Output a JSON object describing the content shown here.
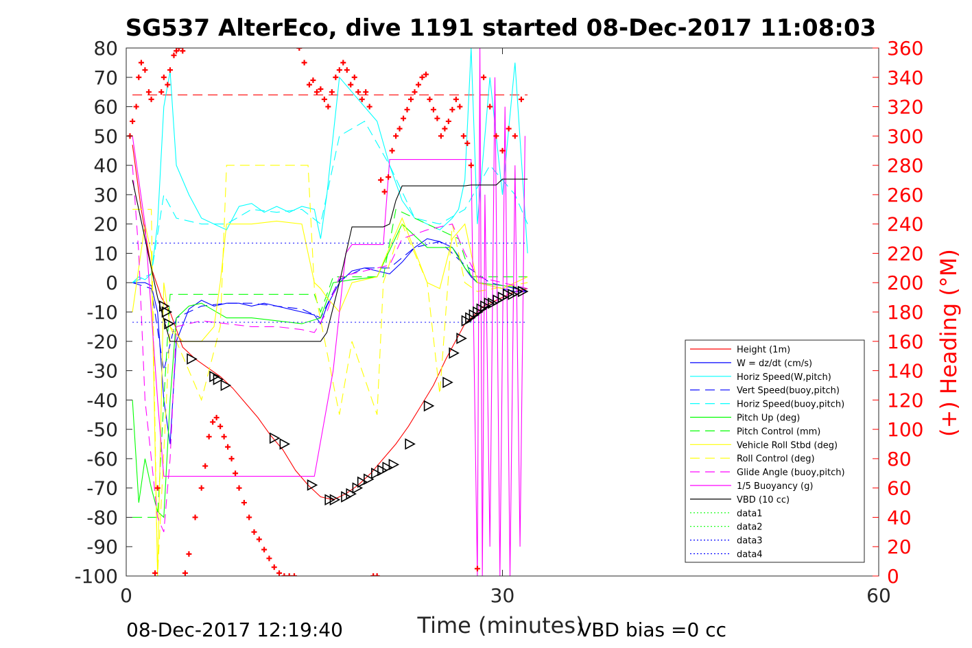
{
  "chart_data": {
    "type": "line",
    "title": "SG537 AlterEco, dive 1191 started 08-Dec-2017 11:08:03",
    "xlabel": "Time (minutes)",
    "ylabel": "",
    "y2label": "(+) Heading (°M)",
    "xlim": [
      0,
      60
    ],
    "ylim": [
      -100,
      80
    ],
    "y2lim": [
      0,
      360
    ],
    "x_ticks": [
      "0",
      "30",
      "60"
    ],
    "y_ticks": [
      "80",
      "70",
      "60",
      "50",
      "40",
      "30",
      "20",
      "10",
      "0",
      "-10",
      "-20",
      "-30",
      "-40",
      "-50",
      "-60",
      "-70",
      "-80",
      "-90",
      "-100"
    ],
    "y2_ticks": [
      "360",
      "340",
      "320",
      "300",
      "280",
      "260",
      "240",
      "220",
      "200",
      "180",
      "160",
      "140",
      "120",
      "100",
      "80",
      "60",
      "40",
      "20",
      "0"
    ],
    "legend_position": "bottom-right",
    "footer_left": "08-Dec-2017 12:19:40",
    "footer_right": "VBD bias =0 cc",
    "colors": {
      "height": "#ff0000",
      "w": "#0000ff",
      "horiz": "#00ffff",
      "vert_buoy": "#0000ff",
      "horiz_buoy": "#00ffff",
      "pitch": "#00ff00",
      "pitch_ctl": "#00ff00",
      "roll": "#ffff00",
      "roll_ctl": "#ffff00",
      "glide": "#ff00ff",
      "buoyancy": "#ff00ff",
      "vbd": "#000000",
      "heading": "#ff0000",
      "axis_right": "#ff0000"
    },
    "series": [
      {
        "name": "Height (1m)",
        "key": "height",
        "style": "solid",
        "x": [
          0.5,
          1.2,
          2.0,
          2.8,
          3.5,
          4.5,
          5.5,
          6.5,
          7.5,
          8.5,
          9.5,
          10.5,
          11.5,
          12.5,
          13.5,
          14.5,
          15.5,
          16.5,
          17.5,
          18.5,
          19.5,
          20.5,
          21.5,
          22.5,
          23.5,
          24.5,
          25.5,
          26.5,
          27.0,
          27.5,
          28.0,
          28.5,
          29.0,
          29.5,
          30.0,
          30.5,
          31.0,
          31.5,
          32.0
        ],
        "y": [
          47,
          25,
          5,
          -5,
          -10,
          -22,
          -26,
          -29,
          -32,
          -36,
          -41,
          -46,
          -52,
          -57,
          -64,
          -69,
          -73,
          -74,
          -72,
          -69,
          -65,
          -60,
          -55,
          -49,
          -42,
          -35,
          -26,
          -18,
          -14,
          -12,
          -10,
          -8,
          -7,
          -6,
          -5,
          -4,
          -3,
          -2.5,
          -2
        ]
      },
      {
        "name": "W = dz/dt (cm/s)",
        "key": "w",
        "style": "solid",
        "x": [
          0.5,
          1.0,
          1.5,
          2.0,
          2.5,
          3.0,
          3.5,
          4.0,
          5.0,
          6.0,
          7.0,
          8.0,
          9.0,
          10.0,
          11.0,
          12.0,
          13.0,
          14.0,
          15.0,
          15.5,
          16.0,
          17.0,
          18.0,
          19.0,
          20.0,
          21.0,
          22.0,
          23.0,
          24.0,
          25.0,
          26.0,
          26.5,
          27.0,
          27.5,
          28.0,
          29.0,
          30.0,
          31.0,
          32.0
        ],
        "y": [
          0,
          0,
          0,
          -1,
          -10,
          -40,
          -55,
          -20,
          -9,
          -6,
          -8,
          -7,
          -7,
          -8,
          -7,
          -8,
          -9,
          -10,
          -11,
          -14,
          -8,
          0,
          4,
          5,
          4,
          3,
          7,
          12,
          15,
          14,
          12,
          9,
          5,
          2,
          0,
          -1,
          -2,
          -3,
          -3
        ]
      },
      {
        "name": "Horiz Speed(W,pitch)",
        "key": "horiz",
        "style": "solid",
        "x": [
          0.5,
          1.0,
          1.5,
          2.0,
          2.5,
          3.0,
          3.5,
          4.0,
          5.0,
          6.0,
          7.0,
          8.0,
          9.0,
          10.0,
          11.0,
          12.0,
          13.0,
          14.0,
          15.0,
          15.5,
          16.0,
          17.0,
          18.0,
          19.0,
          20.0,
          21.0,
          22.0,
          23.0,
          24.0,
          25.0,
          26.0,
          26.5,
          27.0,
          27.5,
          28.0,
          29.0,
          30.0,
          31.0,
          32.0
        ],
        "y": [
          0,
          2,
          1,
          3,
          20,
          60,
          72,
          40,
          30,
          22,
          20,
          18,
          26,
          27,
          24,
          26,
          24,
          26,
          25,
          15,
          30,
          70,
          65,
          60,
          55,
          40,
          28,
          22,
          20,
          18,
          22,
          25,
          35,
          80,
          20,
          70,
          30,
          75,
          10
        ]
      },
      {
        "name": "Vert Speed(buoy,pitch)",
        "key": "vert_buoy",
        "style": "dashed",
        "x": [
          0.5,
          2.0,
          3.0,
          4.0,
          6.0,
          8.0,
          10.0,
          12.0,
          14.0,
          15.5,
          17.0,
          19.0,
          21.0,
          23.0,
          25.0,
          27.0,
          29.0,
          31.0,
          32.0
        ],
        "y": [
          0,
          -2,
          -30,
          -12,
          -8,
          -7,
          -7,
          -8,
          -9,
          -12,
          1,
          5,
          5,
          12,
          14,
          6,
          0,
          -2,
          -3
        ]
      },
      {
        "name": "Horiz Speed(buoy,pitch)",
        "key": "horiz_buoy",
        "style": "dashed",
        "x": [
          0.5,
          2.0,
          3.0,
          4.0,
          6.0,
          8.0,
          10.0,
          12.0,
          14.0,
          15.5,
          17.0,
          19.0,
          21.0,
          23.0,
          25.0,
          27.0,
          29.0,
          31.0,
          32.0
        ],
        "y": [
          0,
          3,
          30,
          22,
          20,
          20,
          25,
          24,
          25,
          20,
          50,
          55,
          40,
          22,
          20,
          25,
          40,
          30,
          20
        ]
      },
      {
        "name": "Pitch Up (deg)",
        "key": "pitch",
        "style": "solid",
        "x": [
          0.5,
          1.0,
          1.5,
          2.0,
          2.5,
          3.0,
          3.5,
          4.0,
          5.0,
          6.0,
          8.0,
          10.0,
          12.0,
          14.0,
          15.5,
          16.5,
          18.0,
          20.0,
          22.0,
          24.0,
          26.0,
          27.0,
          28.0,
          30.0,
          32.0
        ],
        "y": [
          -40,
          -75,
          -60,
          -70,
          -78,
          -80,
          -40,
          -12,
          -8,
          -7,
          -12,
          -12,
          -13,
          -14,
          -12,
          0,
          1,
          2,
          20,
          12,
          12,
          5,
          0,
          -1,
          -2
        ]
      },
      {
        "name": "Pitch Control (mm)",
        "key": "pitch_ctl",
        "style": "dashed",
        "x": [
          0.5,
          2.5,
          3.0,
          3.5,
          4.0,
          15.0,
          15.5,
          16.5,
          20.5,
          21.5,
          26.5,
          27.5,
          32.0
        ],
        "y": [
          -80,
          -80,
          -40,
          -4,
          -4,
          -4,
          -10,
          2,
          2,
          25,
          15,
          2,
          2
        ]
      },
      {
        "name": "Vehicle Roll Stbd (deg)",
        "key": "roll",
        "style": "solid",
        "x": [
          0.5,
          1.5,
          2.0,
          2.5,
          3.0,
          3.5,
          4.5,
          6.0,
          7.0,
          7.5,
          8.0,
          10.0,
          12.0,
          14.0,
          15.0,
          15.5,
          16.0,
          17.0,
          18.0,
          20.0,
          22.0,
          24.0,
          25.0,
          26.0,
          27.0,
          28.0,
          30.0,
          32.0
        ],
        "y": [
          -10,
          20,
          10,
          -100,
          0,
          -15,
          -20,
          -20,
          -15,
          0,
          20,
          20,
          21,
          20,
          0,
          -2,
          -5,
          -10,
          0,
          2,
          22,
          0,
          -2,
          15,
          20,
          0,
          -2,
          2
        ]
      },
      {
        "name": "Roll Control (deg)",
        "key": "roll_ctl",
        "style": "dashed",
        "x": [
          0.5,
          2.0,
          2.5,
          3.5,
          6.0,
          7.5,
          8.0,
          14.5,
          15.0,
          17.0,
          18.0,
          20.0,
          20.5,
          22.0,
          24.0,
          25.0,
          26.0,
          27.0,
          28.0,
          32.0
        ],
        "y": [
          25,
          25,
          -100,
          -15,
          -40,
          -15,
          40,
          40,
          -2,
          -45,
          -20,
          -45,
          0,
          20,
          0,
          -38,
          20,
          0,
          -3,
          0
        ]
      },
      {
        "name": "Glide Angle (buoy,pitch)",
        "key": "glide",
        "style": "dashed",
        "x": [
          0.5,
          1.0,
          1.5,
          2.0,
          2.5,
          3.0,
          3.5,
          4.0,
          6.0,
          8.0,
          10.0,
          12.0,
          14.0,
          15.0,
          16.0,
          17.0,
          19.0,
          21.0,
          22.0,
          24.0,
          26.0,
          27.0,
          28.0,
          30.0,
          32.0
        ],
        "y": [
          40,
          10,
          -40,
          -60,
          -80,
          -85,
          -60,
          -15,
          -13,
          -14,
          -15,
          -15,
          -16,
          -17,
          -10,
          2,
          4,
          6,
          15,
          18,
          20,
          10,
          2,
          0,
          -2
        ]
      },
      {
        "name": "1/5 Buoyancy (g)",
        "key": "buoyancy",
        "style": "solid",
        "x": [
          0.5,
          1.5,
          2.5,
          3.0,
          3.5,
          7.0,
          10.0,
          13.0,
          15.0,
          16.5,
          17.5,
          18.0,
          20.5,
          21.0,
          25.0,
          27.5,
          28.0,
          28.2,
          28.4,
          28.6,
          29.0,
          29.4,
          29.8,
          30.2,
          30.6,
          31.0,
          31.4,
          31.8
        ],
        "y": [
          50,
          20,
          -40,
          -66,
          -66,
          -66,
          -66,
          -66,
          -66,
          -30,
          10,
          13,
          13,
          42,
          42,
          42,
          -100,
          80,
          -100,
          30,
          -90,
          70,
          -100,
          60,
          -100,
          40,
          -90,
          50
        ]
      },
      {
        "name": "VBD (10 cc)",
        "key": "vbd",
        "style": "solid",
        "x": [
          0.5,
          1.5,
          2.5,
          3.5,
          15.5,
          16.0,
          17.0,
          18.0,
          20.5,
          21.0,
          21.5,
          22.0,
          22.5,
          25.0,
          27.0,
          27.5,
          29.5,
          30.0,
          32.0
        ],
        "y": [
          35,
          15,
          -5,
          -20,
          -20,
          -17,
          0,
          19,
          19,
          20,
          28,
          33,
          33,
          33,
          33,
          33.3,
          33.3,
          35.3,
          35.3
        ]
      },
      {
        "name": "data1",
        "key": "pitch",
        "style": "dotted",
        "x": [],
        "y": []
      },
      {
        "name": "data2",
        "key": "pitch",
        "style": "dotted",
        "x": [],
        "y": []
      },
      {
        "name": "data3",
        "key": "vert_buoy",
        "style": "dotted",
        "x": [
          0.5,
          32.0
        ],
        "y": [
          13.5,
          13.5
        ]
      },
      {
        "name": "data4",
        "key": "vert_buoy",
        "style": "dotted",
        "x": [
          0.5,
          32.0
        ],
        "y": [
          -13.5,
          -13.5
        ]
      }
    ],
    "reference_lines": [
      {
        "key": "height",
        "style": "dashed",
        "x": [
          0.5,
          32.0
        ],
        "y": [
          64,
          64
        ]
      }
    ],
    "heading_series": {
      "axis": "right",
      "x": [
        0.3,
        0.5,
        0.8,
        1.0,
        1.2,
        1.5,
        1.8,
        2.0,
        2.3,
        2.5,
        2.8,
        3.0,
        3.3,
        3.5,
        3.8,
        4.0,
        4.2,
        4.5,
        4.7,
        5.0,
        5.5,
        6.0,
        6.3,
        6.6,
        6.9,
        7.2,
        7.5,
        7.8,
        8.1,
        8.4,
        8.7,
        9.0,
        9.4,
        9.8,
        10.2,
        10.6,
        11.0,
        11.4,
        11.8,
        12.2,
        12.6,
        13.0,
        13.4,
        13.8,
        14.2,
        14.6,
        14.9,
        15.2,
        15.5,
        15.8,
        16.1,
        16.4,
        16.7,
        17.0,
        17.3,
        17.6,
        17.9,
        18.2,
        18.5,
        18.8,
        19.1,
        19.4,
        19.7,
        20.0,
        20.3,
        20.6,
        20.9,
        21.2,
        21.5,
        21.8,
        22.1,
        22.4,
        22.7,
        23.0,
        23.3,
        23.6,
        23.9,
        24.2,
        24.5,
        24.8,
        25.1,
        25.4,
        25.7,
        26.0,
        26.3,
        26.6,
        26.9,
        27.2,
        27.5,
        28.0,
        28.5,
        29.0,
        29.5,
        30.0,
        30.5,
        31.0,
        31.5
      ],
      "y": [
        300,
        310,
        320,
        340,
        350,
        345,
        330,
        325,
        2,
        60,
        330,
        340,
        335,
        345,
        355,
        358,
        360,
        358,
        2,
        15,
        40,
        60,
        75,
        95,
        105,
        108,
        102,
        95,
        88,
        80,
        70,
        60,
        50,
        40,
        30,
        25,
        18,
        12,
        6,
        2,
        0,
        0,
        0,
        360,
        350,
        335,
        338,
        330,
        332,
        325,
        320,
        330,
        340,
        345,
        350,
        345,
        335,
        340,
        330,
        325,
        330,
        320,
        0,
        0,
        270,
        262,
        272,
        290,
        300,
        305,
        312,
        318,
        325,
        330,
        335,
        340,
        342,
        325,
        318,
        312,
        300,
        305,
        310,
        318,
        325,
        320,
        300,
        295,
        280,
        5,
        340,
        320,
        300,
        290,
        305,
        300,
        325
      ]
    },
    "dive_markers": {
      "x": [
        3.0,
        3.2,
        3.4,
        5.2,
        7.0,
        7.3,
        7.9,
        11.8,
        12.6,
        14.8,
        16.2,
        16.6,
        17.5,
        17.9,
        18.4,
        18.8,
        19.3,
        19.9,
        20.4,
        20.8,
        21.3,
        22.6,
        24.1,
        25.6,
        26.1,
        26.7,
        27.1,
        27.4,
        27.7,
        28.0,
        28.3,
        28.6,
        28.9,
        29.2,
        29.6,
        30.0,
        30.4,
        30.8,
        31.2,
        31.6
      ],
      "y": [
        -8,
        -10,
        -14,
        -26,
        -32,
        -33,
        -35,
        -53,
        -55,
        -69,
        -74,
        -74,
        -73,
        -72,
        -70,
        -68,
        -67,
        -65,
        -64,
        -63,
        -62,
        -55,
        -42,
        -34,
        -24,
        -19,
        -13,
        -12,
        -11,
        -10,
        -9,
        -8,
        -7,
        -7,
        -6,
        -5,
        -4,
        -4,
        -3,
        -3
      ]
    }
  }
}
